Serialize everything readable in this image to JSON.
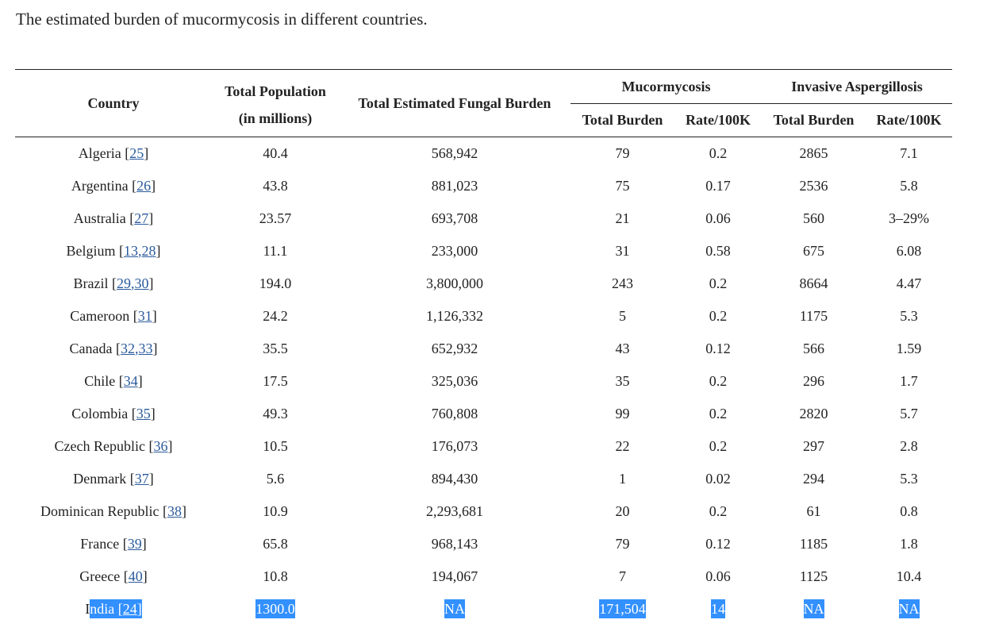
{
  "caption": "The estimated burden of mucormycosis in different countries.",
  "headers": {
    "country": "Country",
    "population_line1": "Total Population",
    "population_line2": "(in millions)",
    "fungal_burden": "Total Estimated Fungal Burden",
    "mucormycosis": "Mucormycosis",
    "aspergillosis": "Invasive Aspergillosis",
    "muc_total": "Total Burden",
    "muc_rate": "Rate/100K",
    "asp_total": "Total Burden",
    "asp_rate": "Rate/100K"
  },
  "rows": [
    {
      "country": "Algeria",
      "refs": [
        "25"
      ],
      "population": "40.4",
      "fungal": "568,942",
      "muc_total": "79",
      "muc_rate": "0.2",
      "asp_total": "2865",
      "asp_rate": "7.1"
    },
    {
      "country": "Argentina",
      "refs": [
        "26"
      ],
      "population": "43.8",
      "fungal": "881,023",
      "muc_total": "75",
      "muc_rate": "0.17",
      "asp_total": "2536",
      "asp_rate": "5.8"
    },
    {
      "country": "Australia",
      "refs": [
        "27"
      ],
      "population": "23.57",
      "fungal": "693,708",
      "muc_total": "21",
      "muc_rate": "0.06",
      "asp_total": "560",
      "asp_rate": "3–29%"
    },
    {
      "country": "Belgium",
      "refs": [
        "13",
        "28"
      ],
      "population": "11.1",
      "fungal": "233,000",
      "muc_total": "31",
      "muc_rate": "0.58",
      "asp_total": "675",
      "asp_rate": "6.08"
    },
    {
      "country": "Brazil",
      "refs": [
        "29",
        "30"
      ],
      "population": "194.0",
      "fungal": "3,800,000",
      "muc_total": "243",
      "muc_rate": "0.2",
      "asp_total": "8664",
      "asp_rate": "4.47"
    },
    {
      "country": "Cameroon",
      "refs": [
        "31"
      ],
      "population": "24.2",
      "fungal": "1,126,332",
      "muc_total": "5",
      "muc_rate": "0.2",
      "asp_total": "1175",
      "asp_rate": "5.3"
    },
    {
      "country": "Canada",
      "refs": [
        "32",
        "33"
      ],
      "population": "35.5",
      "fungal": "652,932",
      "muc_total": "43",
      "muc_rate": "0.12",
      "asp_total": "566",
      "asp_rate": "1.59"
    },
    {
      "country": "Chile",
      "refs": [
        "34"
      ],
      "population": "17.5",
      "fungal": "325,036",
      "muc_total": "35",
      "muc_rate": "0.2",
      "asp_total": "296",
      "asp_rate": "1.7"
    },
    {
      "country": "Colombia",
      "refs": [
        "35"
      ],
      "population": "49.3",
      "fungal": "760,808",
      "muc_total": "99",
      "muc_rate": "0.2",
      "asp_total": "2820",
      "asp_rate": "5.7"
    },
    {
      "country": "Czech Republic",
      "refs": [
        "36"
      ],
      "population": "10.5",
      "fungal": "176,073",
      "muc_total": "22",
      "muc_rate": "0.2",
      "asp_total": "297",
      "asp_rate": "2.8"
    },
    {
      "country": "Denmark",
      "refs": [
        "37"
      ],
      "population": "5.6",
      "fungal": "894,430",
      "muc_total": "1",
      "muc_rate": "0.02",
      "asp_total": "294",
      "asp_rate": "5.3"
    },
    {
      "country": "Dominican Republic",
      "refs": [
        "38"
      ],
      "population": "10.9",
      "fungal": "2,293,681",
      "muc_total": "20",
      "muc_rate": "0.2",
      "asp_total": "61",
      "asp_rate": "0.8"
    },
    {
      "country": "France",
      "refs": [
        "39"
      ],
      "population": "65.8",
      "fungal": "968,143",
      "muc_total": "79",
      "muc_rate": "0.12",
      "asp_total": "1185",
      "asp_rate": "1.8"
    },
    {
      "country": "Greece",
      "refs": [
        "40"
      ],
      "population": "10.8",
      "fungal": "194,067",
      "muc_total": "7",
      "muc_rate": "0.06",
      "asp_total": "1125",
      "asp_rate": "10.4"
    },
    {
      "country": "India",
      "refs": [
        "24"
      ],
      "population": "1300.0",
      "fungal": "NA",
      "muc_total": "171,504",
      "muc_rate": "14",
      "asp_total": "NA",
      "asp_rate": "NA",
      "highlighted": true
    }
  ],
  "colors": {
    "text": "#222222",
    "link": "#2a5a9c",
    "selection": "#3390ff"
  }
}
